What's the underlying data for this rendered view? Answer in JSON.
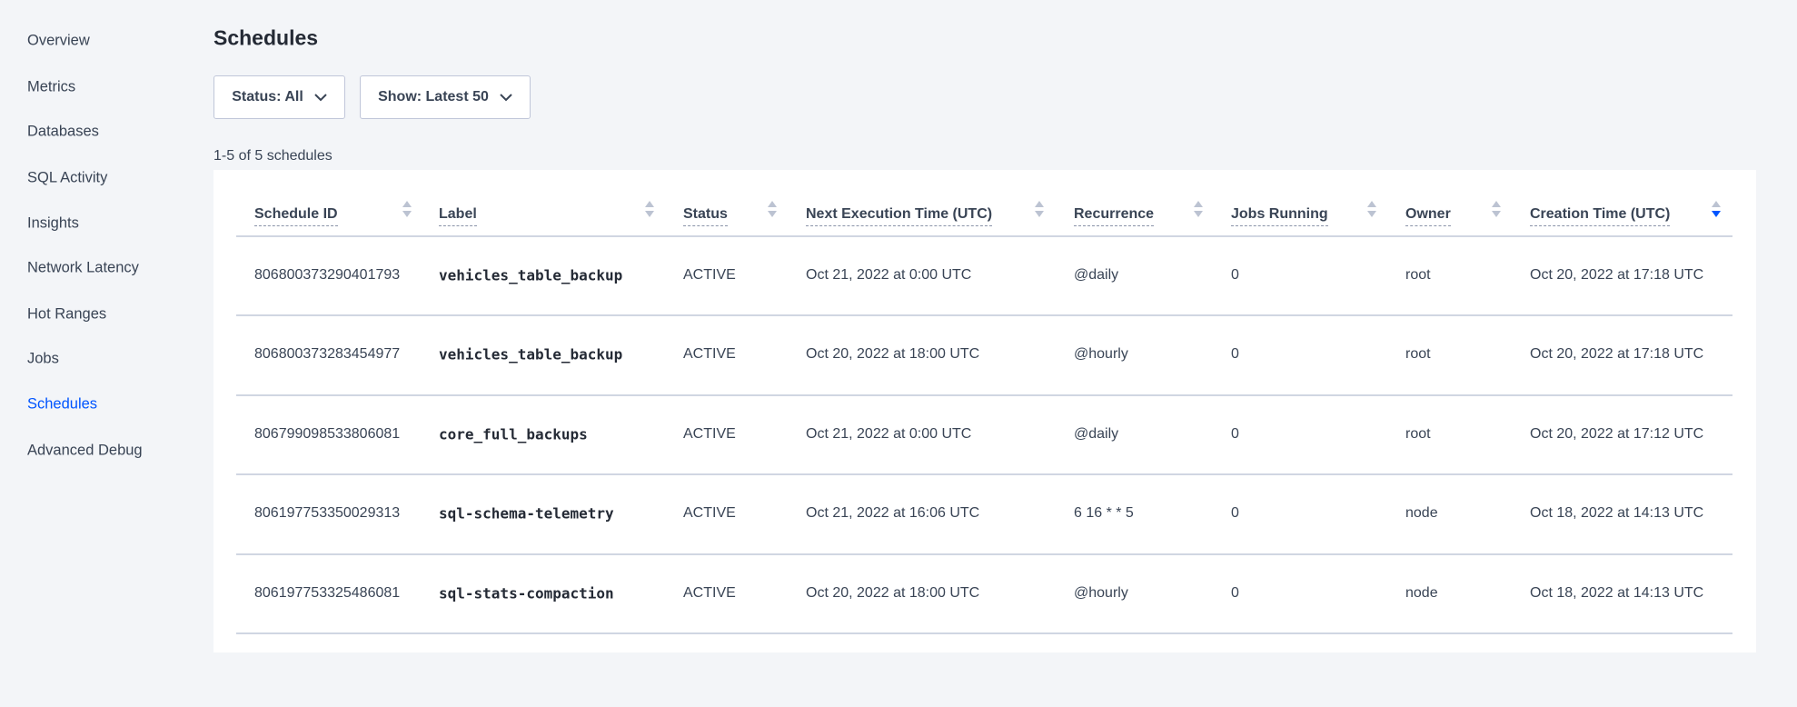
{
  "sidebar": {
    "items": [
      {
        "label": "Overview"
      },
      {
        "label": "Metrics"
      },
      {
        "label": "Databases"
      },
      {
        "label": "SQL Activity"
      },
      {
        "label": "Insights"
      },
      {
        "label": "Network Latency"
      },
      {
        "label": "Hot Ranges"
      },
      {
        "label": "Jobs"
      },
      {
        "label": "Schedules",
        "active": true
      },
      {
        "label": "Advanced Debug"
      }
    ]
  },
  "page": {
    "title": "Schedules",
    "count": "1-5 of 5 schedules"
  },
  "filters": {
    "status": "Status: All",
    "show": "Show: Latest 50"
  },
  "table": {
    "columns": [
      "Schedule ID",
      "Label",
      "Status",
      "Next Execution Time (UTC)",
      "Recurrence",
      "Jobs Running",
      "Owner",
      "Creation Time (UTC)"
    ],
    "sorted_column": "Creation Time (UTC)",
    "sort_direction": "descending",
    "rows": [
      [
        "806800373290401793",
        "vehicles_table_backup",
        "ACTIVE",
        "Oct 21, 2022 at 0:00 UTC",
        "@daily",
        "0",
        "root",
        "Oct 20, 2022 at 17:18 UTC"
      ],
      [
        "806800373283454977",
        "vehicles_table_backup",
        "ACTIVE",
        "Oct 20, 2022 at 18:00 UTC",
        "@hourly",
        "0",
        "root",
        "Oct 20, 2022 at 17:18 UTC"
      ],
      [
        "806799098533806081",
        "core_full_backups",
        "ACTIVE",
        "Oct 21, 2022 at 0:00 UTC",
        "@daily",
        "0",
        "root",
        "Oct 20, 2022 at 17:12 UTC"
      ],
      [
        "806197753350029313",
        "sql-schema-telemetry",
        "ACTIVE",
        "Oct 21, 2022 at 16:06 UTC",
        "6 16 * * 5",
        "0",
        "node",
        "Oct 18, 2022 at 14:13 UTC"
      ],
      [
        "806197753325486081",
        "sql-stats-compaction",
        "ACTIVE",
        "Oct 20, 2022 at 18:00 UTC",
        "@hourly",
        "0",
        "node",
        "Oct 18, 2022 at 14:13 UTC"
      ]
    ]
  },
  "colors": {
    "accent": "#0055ff",
    "text": "#394455",
    "background": "#f3f5f8"
  }
}
